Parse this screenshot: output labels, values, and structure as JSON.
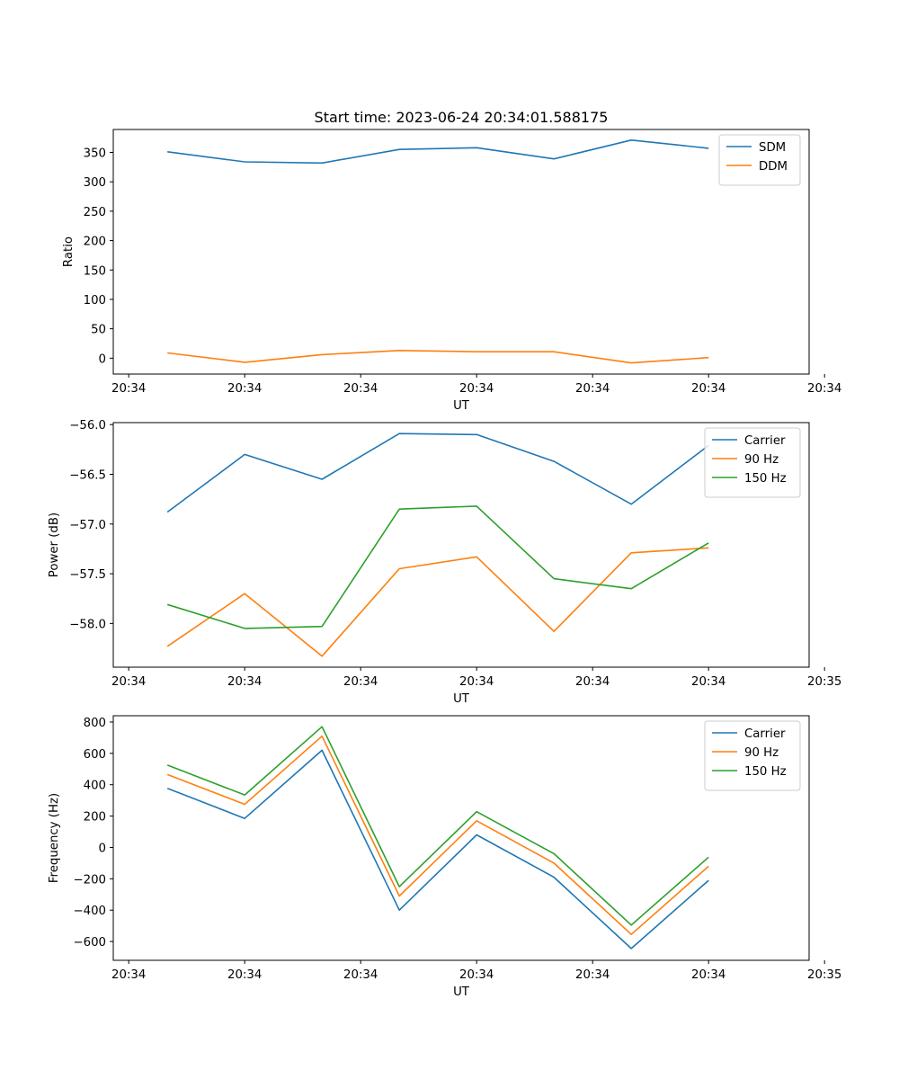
{
  "figure_title": "Start time: 2023-06-24 20:34:01.588175",
  "chart_data": [
    {
      "type": "line",
      "title": "Start time: 2023-06-24 20:34:01.588175",
      "xlabel": "UT",
      "ylabel": "Ratio",
      "x": [
        1,
        2,
        3,
        4,
        5,
        6,
        7,
        8
      ],
      "xlim": [
        0.3,
        9.3
      ],
      "xticks": [
        0.5,
        2,
        3.5,
        5,
        6.5,
        8,
        9.5
      ],
      "xticklabels": [
        "20:34",
        "20:34",
        "20:34",
        "20:34",
        "20:34",
        "20:34",
        "20:34"
      ],
      "ylim": [
        -27,
        389
      ],
      "yticks": [
        0,
        50,
        100,
        150,
        200,
        250,
        300,
        350
      ],
      "yticklabels": [
        "0",
        "50",
        "100",
        "150",
        "200",
        "250",
        "300",
        "350"
      ],
      "legend": "upper right",
      "grid": false,
      "series": [
        {
          "name": "SDM",
          "color": "#1f77b4",
          "values": [
            351,
            334,
            332,
            355,
            358,
            339,
            371,
            357
          ]
        },
        {
          "name": "DDM",
          "color": "#ff7f0e",
          "values": [
            9,
            -7,
            6,
            13,
            11,
            11,
            -8,
            1
          ]
        }
      ]
    },
    {
      "type": "line",
      "xlabel": "UT",
      "ylabel": "Power (dB)",
      "x": [
        1,
        2,
        3,
        4,
        5,
        6,
        7,
        8
      ],
      "xlim": [
        0.3,
        9.3
      ],
      "xticks": [
        0.5,
        2,
        3.5,
        5,
        6.5,
        8,
        9.5
      ],
      "xticklabels": [
        "20:34",
        "20:34",
        "20:34",
        "20:34",
        "20:34",
        "20:34",
        "20:35"
      ],
      "ylim": [
        -58.44,
        -55.98
      ],
      "yticks": [
        -58.0,
        -57.5,
        -57.0,
        -56.5,
        -56.0
      ],
      "yticklabels": [
        "−58.0",
        "−57.5",
        "−57.0",
        "−56.5",
        "−56.0"
      ],
      "legend": "upper right",
      "grid": false,
      "series": [
        {
          "name": "Carrier",
          "color": "#1f77b4",
          "values": [
            -56.88,
            -56.3,
            -56.55,
            -56.09,
            -56.1,
            -56.37,
            -56.8,
            -56.21
          ]
        },
        {
          "name": "90 Hz",
          "color": "#ff7f0e",
          "values": [
            -58.23,
            -57.7,
            -58.33,
            -57.45,
            -57.33,
            -58.08,
            -57.29,
            -57.24
          ]
        },
        {
          "name": "150 Hz",
          "color": "#2ca02c",
          "values": [
            -57.81,
            -58.05,
            -58.03,
            -56.85,
            -56.82,
            -57.55,
            -57.65,
            -57.19
          ]
        }
      ]
    },
    {
      "type": "line",
      "xlabel": "UT",
      "ylabel": "Frequency (Hz)",
      "x": [
        1,
        2,
        3,
        4,
        5,
        6,
        7,
        8
      ],
      "xlim": [
        0.3,
        9.3
      ],
      "xticks": [
        0.5,
        2,
        3.5,
        5,
        6.5,
        8,
        9.5
      ],
      "xticklabels": [
        "20:34",
        "20:34",
        "20:34",
        "20:34",
        "20:34",
        "20:34",
        "20:35"
      ],
      "ylim": [
        -720,
        840
      ],
      "yticks": [
        -600,
        -400,
        -200,
        0,
        200,
        400,
        600,
        800
      ],
      "yticklabels": [
        "−600",
        "−400",
        "−200",
        "0",
        "200",
        "400",
        "600",
        "800"
      ],
      "legend": "upper right",
      "grid": false,
      "series": [
        {
          "name": "Carrier",
          "color": "#1f77b4",
          "values": [
            377,
            185,
            620,
            -400,
            80,
            -190,
            -645,
            -210
          ]
        },
        {
          "name": "90 Hz",
          "color": "#ff7f0e",
          "values": [
            465,
            275,
            710,
            -310,
            170,
            -100,
            -555,
            -120
          ]
        },
        {
          "name": "150 Hz",
          "color": "#2ca02c",
          "values": [
            525,
            335,
            770,
            -250,
            228,
            -40,
            -495,
            -62
          ]
        }
      ]
    }
  ]
}
